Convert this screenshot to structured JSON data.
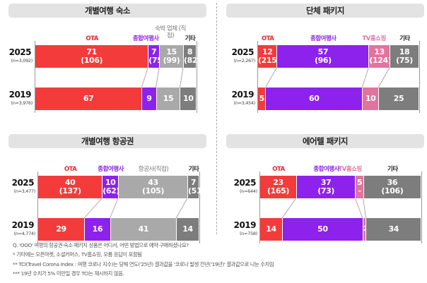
{
  "colors": {
    "OTA": "#f43b3b",
    "agency": "#8c22ec",
    "direct": "#a9a9a9",
    "tv": "#e0749e",
    "other": "#7d7d7d",
    "ota_label": "#e8252b",
    "agency_label": "#8c22ec",
    "gray_label": "#777777",
    "other_label": "#222222"
  },
  "chart_data": [
    {
      "type": "stacked-bar-horizontal",
      "title": "개별여행 숙소",
      "categories": [
        "OTA",
        "종합여행사",
        "숙박 업체 (직접)",
        "기타"
      ],
      "category_colors": [
        "#f43b3b",
        "#8c22ec",
        "#a9a9a9",
        "#7d7d7d"
      ],
      "series": [
        {
          "name": "2025",
          "n": "(n=3,092)",
          "values": [
            71,
            7,
            15,
            8
          ],
          "tci": [
            "(106)",
            "(75)",
            "(99)",
            "(82)"
          ]
        },
        {
          "name": "2019",
          "n": "(n=3,976)",
          "values": [
            67,
            9,
            15,
            10
          ],
          "tci": [
            null,
            null,
            null,
            null
          ]
        }
      ]
    },
    {
      "type": "stacked-bar-horizontal",
      "title": "단체 패키지",
      "categories": [
        "OTA",
        "종합여행사",
        "TV홈쇼핑",
        "기타"
      ],
      "category_colors": [
        "#f43b3b",
        "#8c22ec",
        "#e0749e",
        "#7d7d7d"
      ],
      "series": [
        {
          "name": "2025",
          "n": "(n=2,267)",
          "values": [
            12,
            57,
            13,
            18
          ],
          "tci": [
            "(215)",
            "(96)",
            "(124)",
            "(75)"
          ]
        },
        {
          "name": "2019",
          "n": "(n=3,454)",
          "values": [
            5,
            60,
            10,
            25
          ],
          "tci": [
            null,
            null,
            null,
            null
          ]
        }
      ]
    },
    {
      "type": "stacked-bar-horizontal",
      "title": "개별여행 항공권",
      "categories": [
        "OTA",
        "종합여행사",
        "항공사(직접)",
        "기타"
      ],
      "category_colors": [
        "#f43b3b",
        "#8c22ec",
        "#a9a9a9",
        "#7d7d7d"
      ],
      "series": [
        {
          "name": "2025",
          "n": "(n=3,477)",
          "values": [
            40,
            10,
            43,
            7
          ],
          "tci": [
            "(137)",
            "(62)",
            "(105)",
            "(51)"
          ]
        },
        {
          "name": "2019",
          "n": "(n=4,774)",
          "values": [
            29,
            16,
            41,
            14
          ],
          "tci": [
            null,
            null,
            null,
            null
          ]
        }
      ]
    },
    {
      "type": "stacked-bar-horizontal",
      "title": "에어텔 패키지",
      "categories": [
        "OTA",
        "종합여행사",
        "TV홈쇼핑",
        "기타"
      ],
      "category_colors": [
        "#f43b3b",
        "#8c22ec",
        "#e0749e",
        "#7d7d7d"
      ],
      "series": [
        {
          "name": "2025",
          "n": "(n=644)",
          "values": [
            23,
            37,
            5,
            36
          ],
          "tci": [
            "(165)",
            "(73)",
            "-",
            "(106)"
          ]
        },
        {
          "name": "2019",
          "n": "(n=758)",
          "values": [
            14,
            50,
            2,
            34
          ],
          "tci": [
            null,
            null,
            null,
            null
          ]
        }
      ]
    }
  ],
  "notes": [
    "Q. 'OOO' 여행의 항공권·숙소·패키지 상품은 어디서, 어떤 방법으로 예약·구매하셨나요?",
    "* 기타에는 오픈마켓, 소셜커머스, TV홈쇼핑, 모름 응답이 포함됨",
    "** TCI(Travel Corona Index : 여행 코로나 지수)는 당해 연도('25년) 결과값을 '코로나 발생 전년('19년)' 결과값으로 나눈 수치임",
    "*** 19년 수치가 5% 미만일 경우 TCI는 제시하지 않음."
  ]
}
